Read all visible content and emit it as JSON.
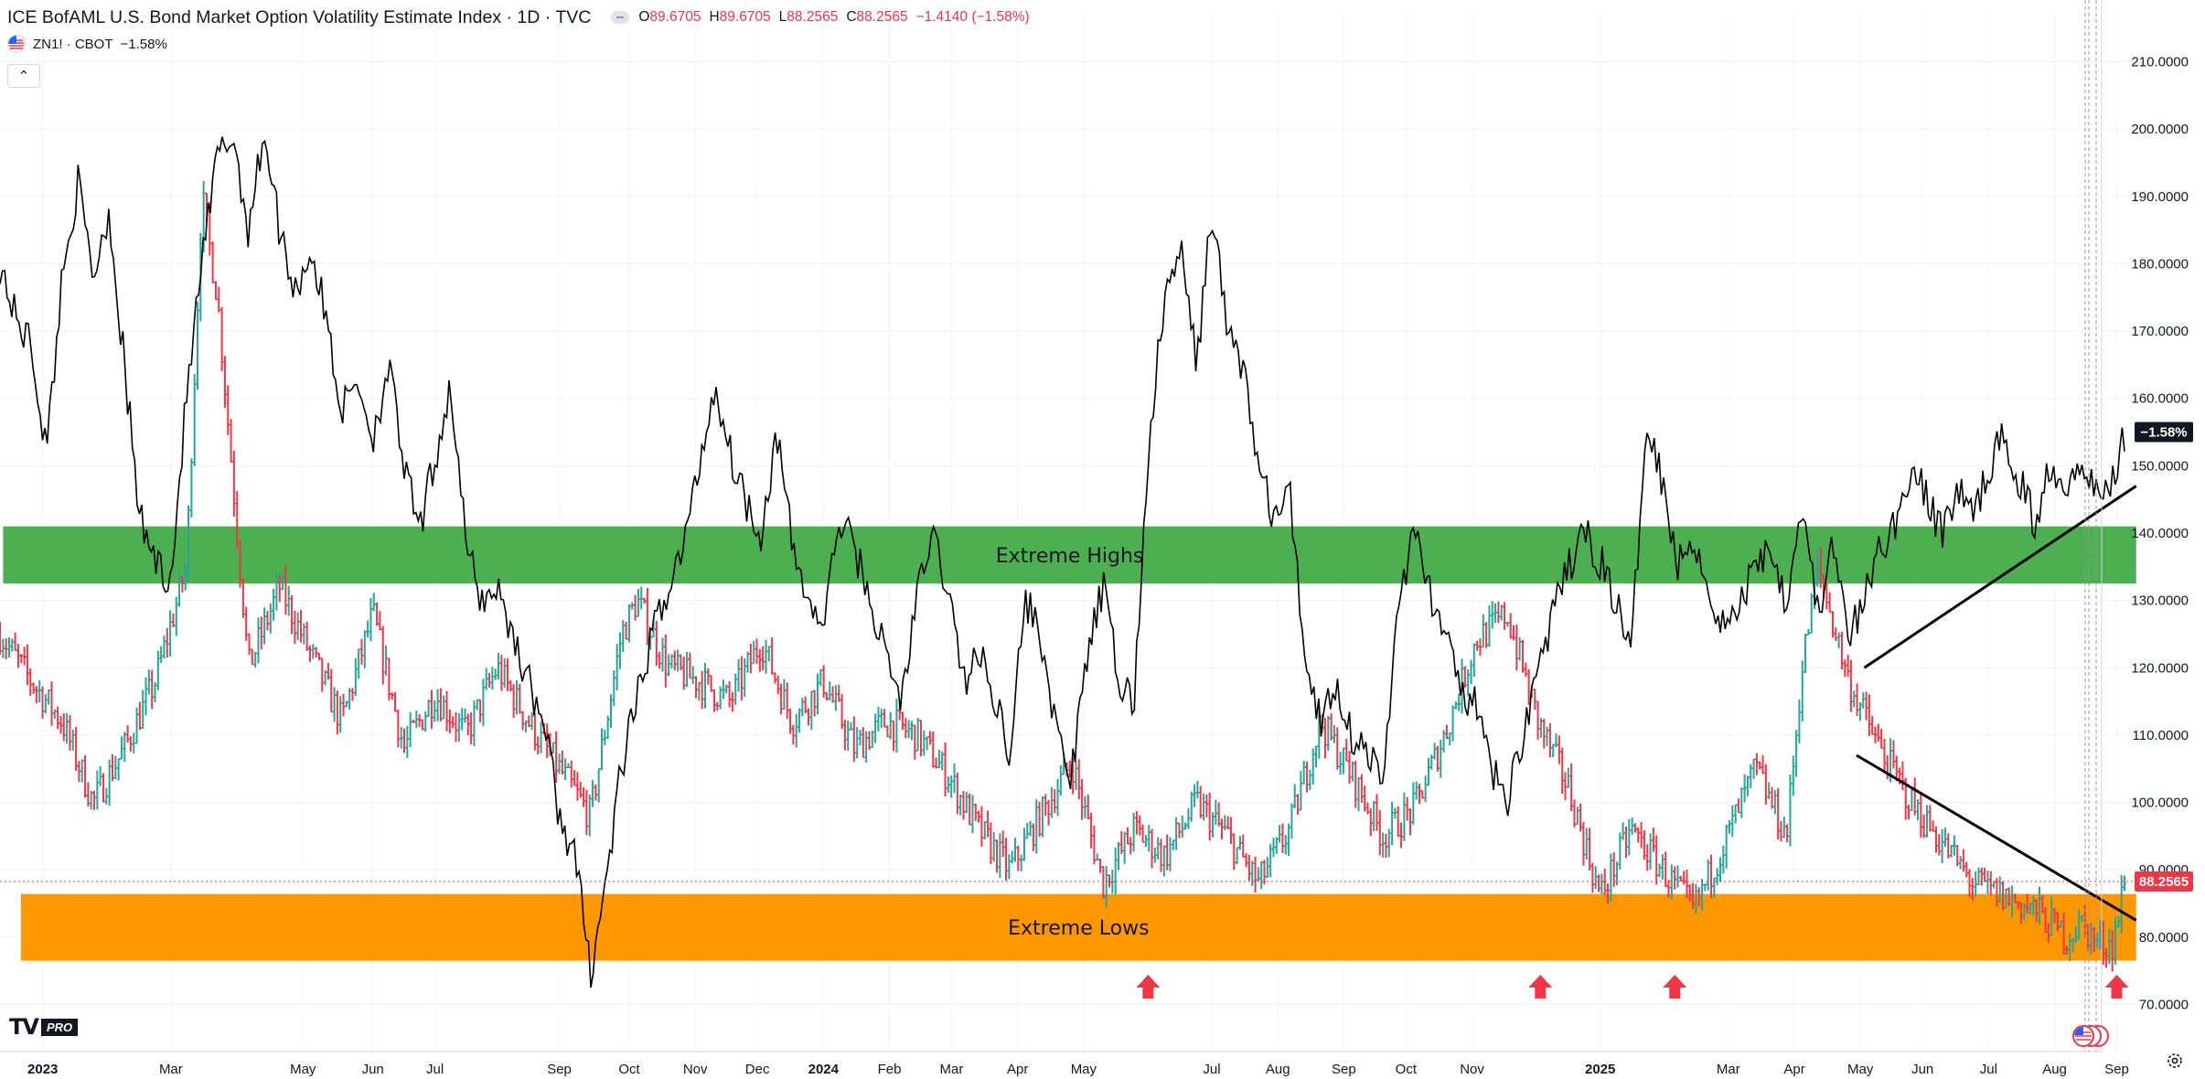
{
  "header": {
    "title": "ICE BofAML U.S. Bond Market Option Volatility Estimate Index · 1D · TVC",
    "ohlc": [
      {
        "k": "O",
        "v": "89.6705"
      },
      {
        "k": "H",
        "v": "89.6705"
      },
      {
        "k": "L",
        "v": "88.2565"
      },
      {
        "k": "C",
        "v": "88.2565"
      },
      {
        "k": "",
        "v": "−1.4140 (−1.58%)"
      }
    ],
    "compare_symbol": "ZN1! · CBOT",
    "compare_change": "−1.58%",
    "collapse_glyph": "⌃"
  },
  "colors": {
    "up": "#26a69a",
    "down": "#f23645",
    "line": "#000000",
    "green_zone": "#4caf50",
    "orange_zone": "#ff9800",
    "arrow": "#f23645",
    "grid": "#f0f3fa"
  },
  "chart_data": {
    "type": "line",
    "title": "ICE BofAML U.S. Bond Market Option Volatility Estimate Index · 1D · TVC",
    "price_scale": {
      "ylim": [
        63,
        217
      ],
      "ticks": [
        "210.0000",
        "200.0000",
        "190.0000",
        "180.0000",
        "170.0000",
        "160.0000",
        "150.0000",
        "140.0000",
        "130.0000",
        "120.0000",
        "110.0000",
        "100.0000",
        "90.0000",
        "80.0000",
        "70.0000"
      ],
      "last_price_label": "88.2565",
      "last_price": 88.2565,
      "compare_label": "−1.58%",
      "compare_value": 155
    },
    "time_axis": {
      "labels": [
        "2023",
        "Mar",
        "May",
        "Jun",
        "Jul",
        "Sep",
        "Oct",
        "Nov",
        "Dec",
        "2024",
        "Feb",
        "Mar",
        "Apr",
        "May",
        "Jul",
        "Aug",
        "Sep",
        "Oct",
        "Nov",
        "2025",
        "Mar",
        "Apr",
        "May",
        "Jun",
        "Jul",
        "Aug",
        "Sep"
      ],
      "label_x": [
        2022.995,
        2023.16,
        2023.33,
        2023.42,
        2023.5,
        2023.66,
        2023.75,
        2023.835,
        2023.915,
        2024.0,
        2024.085,
        2024.165,
        2024.25,
        2024.335,
        2024.5,
        2024.585,
        2024.67,
        2024.75,
        2024.835,
        2025.0,
        2025.165,
        2025.25,
        2025.335,
        2025.415,
        2025.5,
        2025.585,
        2025.665
      ],
      "xlim": [
        2022.94,
        2025.695
      ]
    },
    "series": [
      {
        "name": "ICE BofAML U.S. Bond Market Option Volatility Estimate Index",
        "style": "ohlc-bars",
        "x": [
          2022.94,
          2022.98,
          2023.02,
          2023.06,
          2023.1,
          2023.14,
          2023.18,
          2023.2,
          2023.22,
          2023.26,
          2023.3,
          2023.34,
          2023.38,
          2023.42,
          2023.46,
          2023.5,
          2023.54,
          2023.58,
          2023.62,
          2023.66,
          2023.7,
          2023.74,
          2023.76,
          2023.8,
          2023.84,
          2023.88,
          2023.92,
          2023.96,
          2024.0,
          2024.04,
          2024.08,
          2024.12,
          2024.16,
          2024.2,
          2024.24,
          2024.28,
          2024.32,
          2024.36,
          2024.4,
          2024.44,
          2024.48,
          2024.52,
          2024.56,
          2024.6,
          2024.64,
          2024.68,
          2024.72,
          2024.76,
          2024.8,
          2024.84,
          2024.88,
          2024.92,
          2024.96,
          2025.0,
          2025.04,
          2025.08,
          2025.12,
          2025.16,
          2025.2,
          2025.24,
          2025.26,
          2025.28,
          2025.32,
          2025.36,
          2025.4,
          2025.44,
          2025.48,
          2025.52,
          2025.56,
          2025.6,
          2025.62,
          2025.64,
          2025.66,
          2025.675
        ],
        "values": [
          125,
          118,
          112,
          100,
          108,
          118,
          135,
          190,
          175,
          120,
          132,
          122,
          112,
          128,
          108,
          116,
          110,
          120,
          112,
          105,
          98,
          125,
          130,
          120,
          118,
          115,
          124,
          112,
          118,
          108,
          112,
          110,
          104,
          96,
          90,
          98,
          106,
          88,
          96,
          92,
          100,
          95,
          88,
          96,
          112,
          104,
          95,
          99,
          110,
          124,
          128,
          112,
          102,
          86,
          96,
          90,
          84,
          94,
          105,
          95,
          120,
          135,
          118,
          108,
          100,
          94,
          88,
          86,
          84,
          80,
          82,
          79,
          79,
          88.2565
        ]
      },
      {
        "name": "ZN1!",
        "style": "line",
        "x": [
          2022.94,
          2022.96,
          2022.98,
          2023.0,
          2023.02,
          2023.04,
          2023.06,
          2023.08,
          2023.1,
          2023.12,
          2023.14,
          2023.16,
          2023.18,
          2023.2,
          2023.22,
          2023.24,
          2023.26,
          2023.28,
          2023.3,
          2023.32,
          2023.34,
          2023.36,
          2023.38,
          2023.4,
          2023.42,
          2023.44,
          2023.46,
          2023.48,
          2023.5,
          2023.52,
          2023.54,
          2023.56,
          2023.58,
          2023.6,
          2023.62,
          2023.64,
          2023.66,
          2023.68,
          2023.7,
          2023.72,
          2023.74,
          2023.76,
          2023.78,
          2023.8,
          2023.82,
          2023.84,
          2023.86,
          2023.88,
          2023.9,
          2023.92,
          2023.94,
          2023.96,
          2023.98,
          2024.0,
          2024.02,
          2024.04,
          2024.06,
          2024.08,
          2024.1,
          2024.12,
          2024.14,
          2024.16,
          2024.18,
          2024.2,
          2024.22,
          2024.24,
          2024.26,
          2024.28,
          2024.3,
          2024.32,
          2024.34,
          2024.36,
          2024.38,
          2024.4,
          2024.42,
          2024.44,
          2024.46,
          2024.48,
          2024.5,
          2024.52,
          2024.54,
          2024.56,
          2024.58,
          2024.6,
          2024.62,
          2024.64,
          2024.66,
          2024.68,
          2024.7,
          2024.72,
          2024.74,
          2024.76,
          2024.78,
          2024.8,
          2024.82,
          2024.84,
          2024.86,
          2024.88,
          2024.9,
          2024.92,
          2024.94,
          2024.96,
          2024.98,
          2025.0,
          2025.02,
          2025.04,
          2025.06,
          2025.08,
          2025.1,
          2025.12,
          2025.14,
          2025.16,
          2025.18,
          2025.2,
          2025.22,
          2025.24,
          2025.26,
          2025.28,
          2025.3,
          2025.32,
          2025.34,
          2025.36,
          2025.38,
          2025.4,
          2025.42,
          2025.44,
          2025.46,
          2025.48,
          2025.5,
          2025.52,
          2025.54,
          2025.56,
          2025.58,
          2025.6,
          2025.62,
          2025.64,
          2025.66,
          2025.675
        ],
        "values": [
          180,
          172,
          168,
          152,
          178,
          192,
          178,
          188,
          165,
          142,
          136,
          133,
          160,
          180,
          196,
          199,
          185,
          200,
          185,
          176,
          182,
          172,
          158,
          163,
          154,
          165,
          150,
          140,
          151,
          162,
          138,
          130,
          132,
          125,
          118,
          112,
          98,
          92,
          75,
          88,
          105,
          115,
          125,
          132,
          138,
          150,
          162,
          152,
          145,
          140,
          155,
          138,
          130,
          126,
          142,
          138,
          130,
          122,
          115,
          130,
          140,
          132,
          118,
          122,
          116,
          108,
          130,
          125,
          110,
          104,
          122,
          132,
          118,
          115,
          155,
          175,
          182,
          165,
          188,
          170,
          165,
          150,
          142,
          146,
          122,
          112,
          118,
          110,
          108,
          102,
          130,
          140,
          132,
          124,
          117,
          114,
          105,
          100,
          110,
          120,
          128,
          135,
          140,
          136,
          130,
          122,
          158,
          148,
          135,
          140,
          131,
          126,
          129,
          136,
          138,
          130,
          145,
          128,
          138,
          124,
          130,
          138,
          141,
          150,
          145,
          140,
          147,
          142,
          150,
          154,
          148,
          141,
          151,
          147,
          152,
          145,
          148,
          155
        ]
      }
    ],
    "zones": [
      {
        "label": "Extreme Highs",
        "from": 132.5,
        "to": 141,
        "x_from": 2022.944,
        "x_to": 2025.69
      },
      {
        "label": "Extreme Lows",
        "from": 76.5,
        "to": 86.4,
        "x_from": 2022.967,
        "x_to": 2025.69
      }
    ],
    "trendlines": [
      {
        "x": [
          2025.34,
          2025.69
        ],
        "y": [
          120,
          147
        ]
      },
      {
        "x": [
          2025.33,
          2025.69
        ],
        "y": [
          107,
          82.5
        ]
      }
    ],
    "arrows_x": [
      2024.418,
      2024.923,
      2025.096,
      2025.665
    ],
    "arrow_y": 72.5,
    "grid": true
  }
}
